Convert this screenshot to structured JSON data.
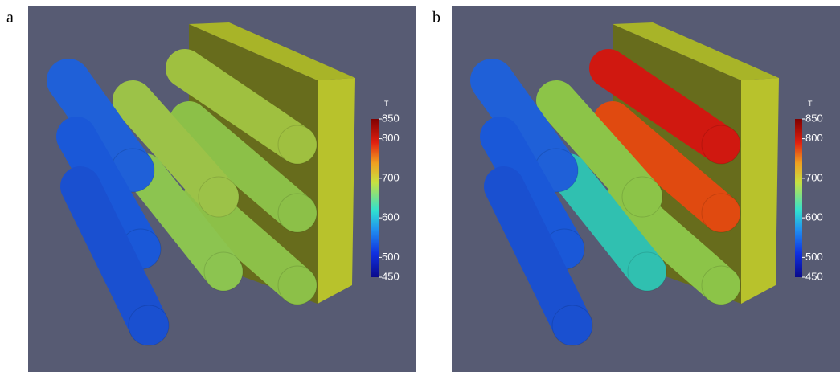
{
  "panels": [
    {
      "label": "a",
      "colorbar": {
        "title": "T",
        "range": [
          450,
          850
        ],
        "ticks": [
          450,
          500,
          600,
          700,
          800,
          850
        ]
      }
    },
    {
      "label": "b",
      "colorbar": {
        "title": "T",
        "range": [
          450,
          850
        ],
        "ticks": [
          450,
          500,
          600,
          700,
          800,
          850
        ]
      }
    }
  ]
}
